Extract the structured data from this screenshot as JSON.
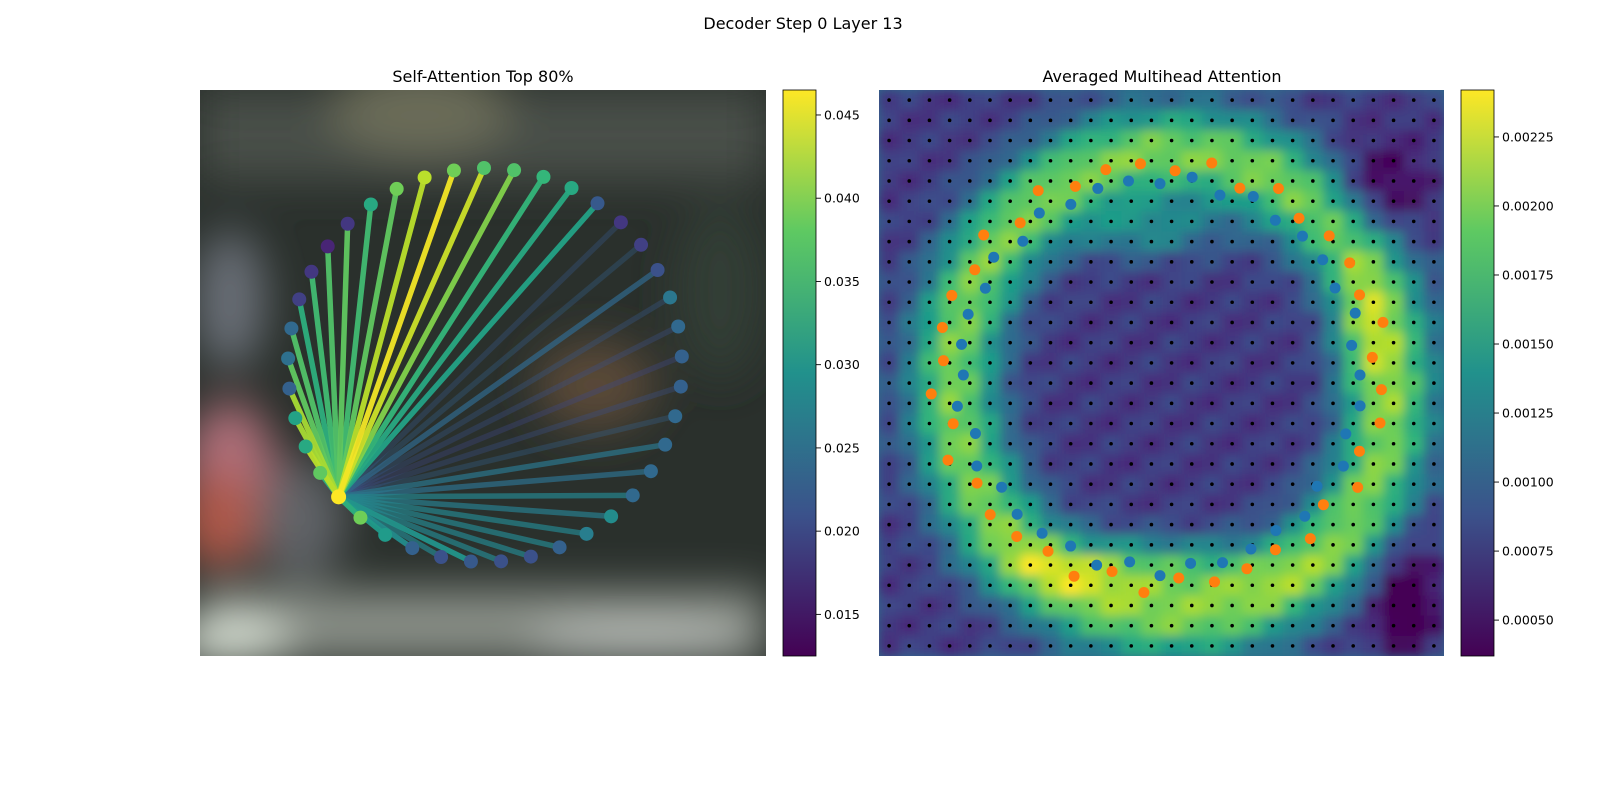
{
  "figure_title": "Decoder Step 0 Layer 13",
  "chart_data": [
    {
      "type": "graph",
      "title": "Self-Attention Top 80%",
      "colormap": "viridis",
      "colorbar": {
        "range": [
          0.0125,
          0.0465
        ],
        "ticks": [
          "0.015",
          "0.020",
          "0.025",
          "0.030",
          "0.035",
          "0.040",
          "0.045"
        ]
      },
      "node_count": 41,
      "source_node": 0,
      "node_values": [
        0.0465,
        0.039,
        0.031,
        0.023,
        0.021,
        0.022,
        0.021,
        0.021,
        0.023,
        0.027,
        0.029,
        0.024,
        0.024,
        0.024,
        0.024,
        0.023,
        0.023,
        0.024,
        0.026,
        0.021,
        0.019,
        0.018,
        0.022,
        0.033,
        0.035,
        0.037,
        0.037,
        0.039,
        0.043,
        0.039,
        0.033,
        0.018,
        0.016,
        0.018,
        0.019,
        0.024,
        0.025,
        0.023,
        0.032,
        0.033,
        0.038
      ],
      "edge_values": [
        0.034,
        0.031,
        0.029,
        0.028,
        0.03,
        0.028,
        0.028,
        0.028,
        0.028,
        0.027,
        0.028,
        0.025,
        0.026,
        0.023,
        0.021,
        0.02,
        0.021,
        0.022,
        0.024,
        0.023,
        0.022,
        0.032,
        0.033,
        0.035,
        0.04,
        0.044,
        0.046,
        0.043,
        0.038,
        0.036,
        0.038,
        0.037,
        0.036,
        0.034,
        0.037,
        0.038,
        0.042,
        0.042,
        0.043,
        0.034,
        0.04
      ]
    },
    {
      "type": "heatmap",
      "title": "Averaged Multihead Attention",
      "colormap": "viridis",
      "colorbar": {
        "range": [
          0.00037,
          0.00242
        ],
        "ticks": [
          "0.00050",
          "0.00075",
          "0.00100",
          "0.00125",
          "0.00150",
          "0.00175",
          "0.00200",
          "0.00225"
        ]
      },
      "grid_size": [
        28,
        28
      ],
      "series": [
        {
          "color": "#1f77b4",
          "count": 40
        },
        {
          "color": "#ff7f0e",
          "count": 40
        }
      ]
    }
  ]
}
